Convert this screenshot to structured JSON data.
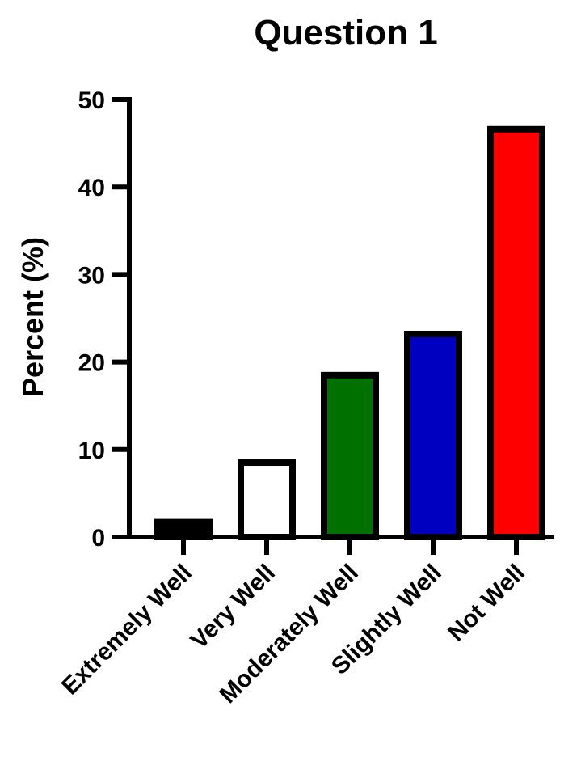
{
  "chart_data": {
    "type": "bar",
    "title": "Question 1",
    "ylabel": "Percent (%)",
    "xlabel": "",
    "ylim": [
      0,
      50
    ],
    "yticks": [
      0,
      10,
      20,
      30,
      40,
      50
    ],
    "ytick_labels": [
      "0",
      "10",
      "20",
      "30",
      "40",
      "50"
    ],
    "categories": [
      "Extremely Well",
      "Very Well",
      "Moderately Well",
      "Slightly Well",
      "Not Well"
    ],
    "values": [
      1.7,
      8.5,
      18.5,
      23.2,
      46.6
    ],
    "colors": [
      "#000000",
      "#ffffff",
      "#007000",
      "#0000c0",
      "#ff0000"
    ],
    "edge_color": "#000000",
    "grid": false,
    "legend": "none"
  }
}
